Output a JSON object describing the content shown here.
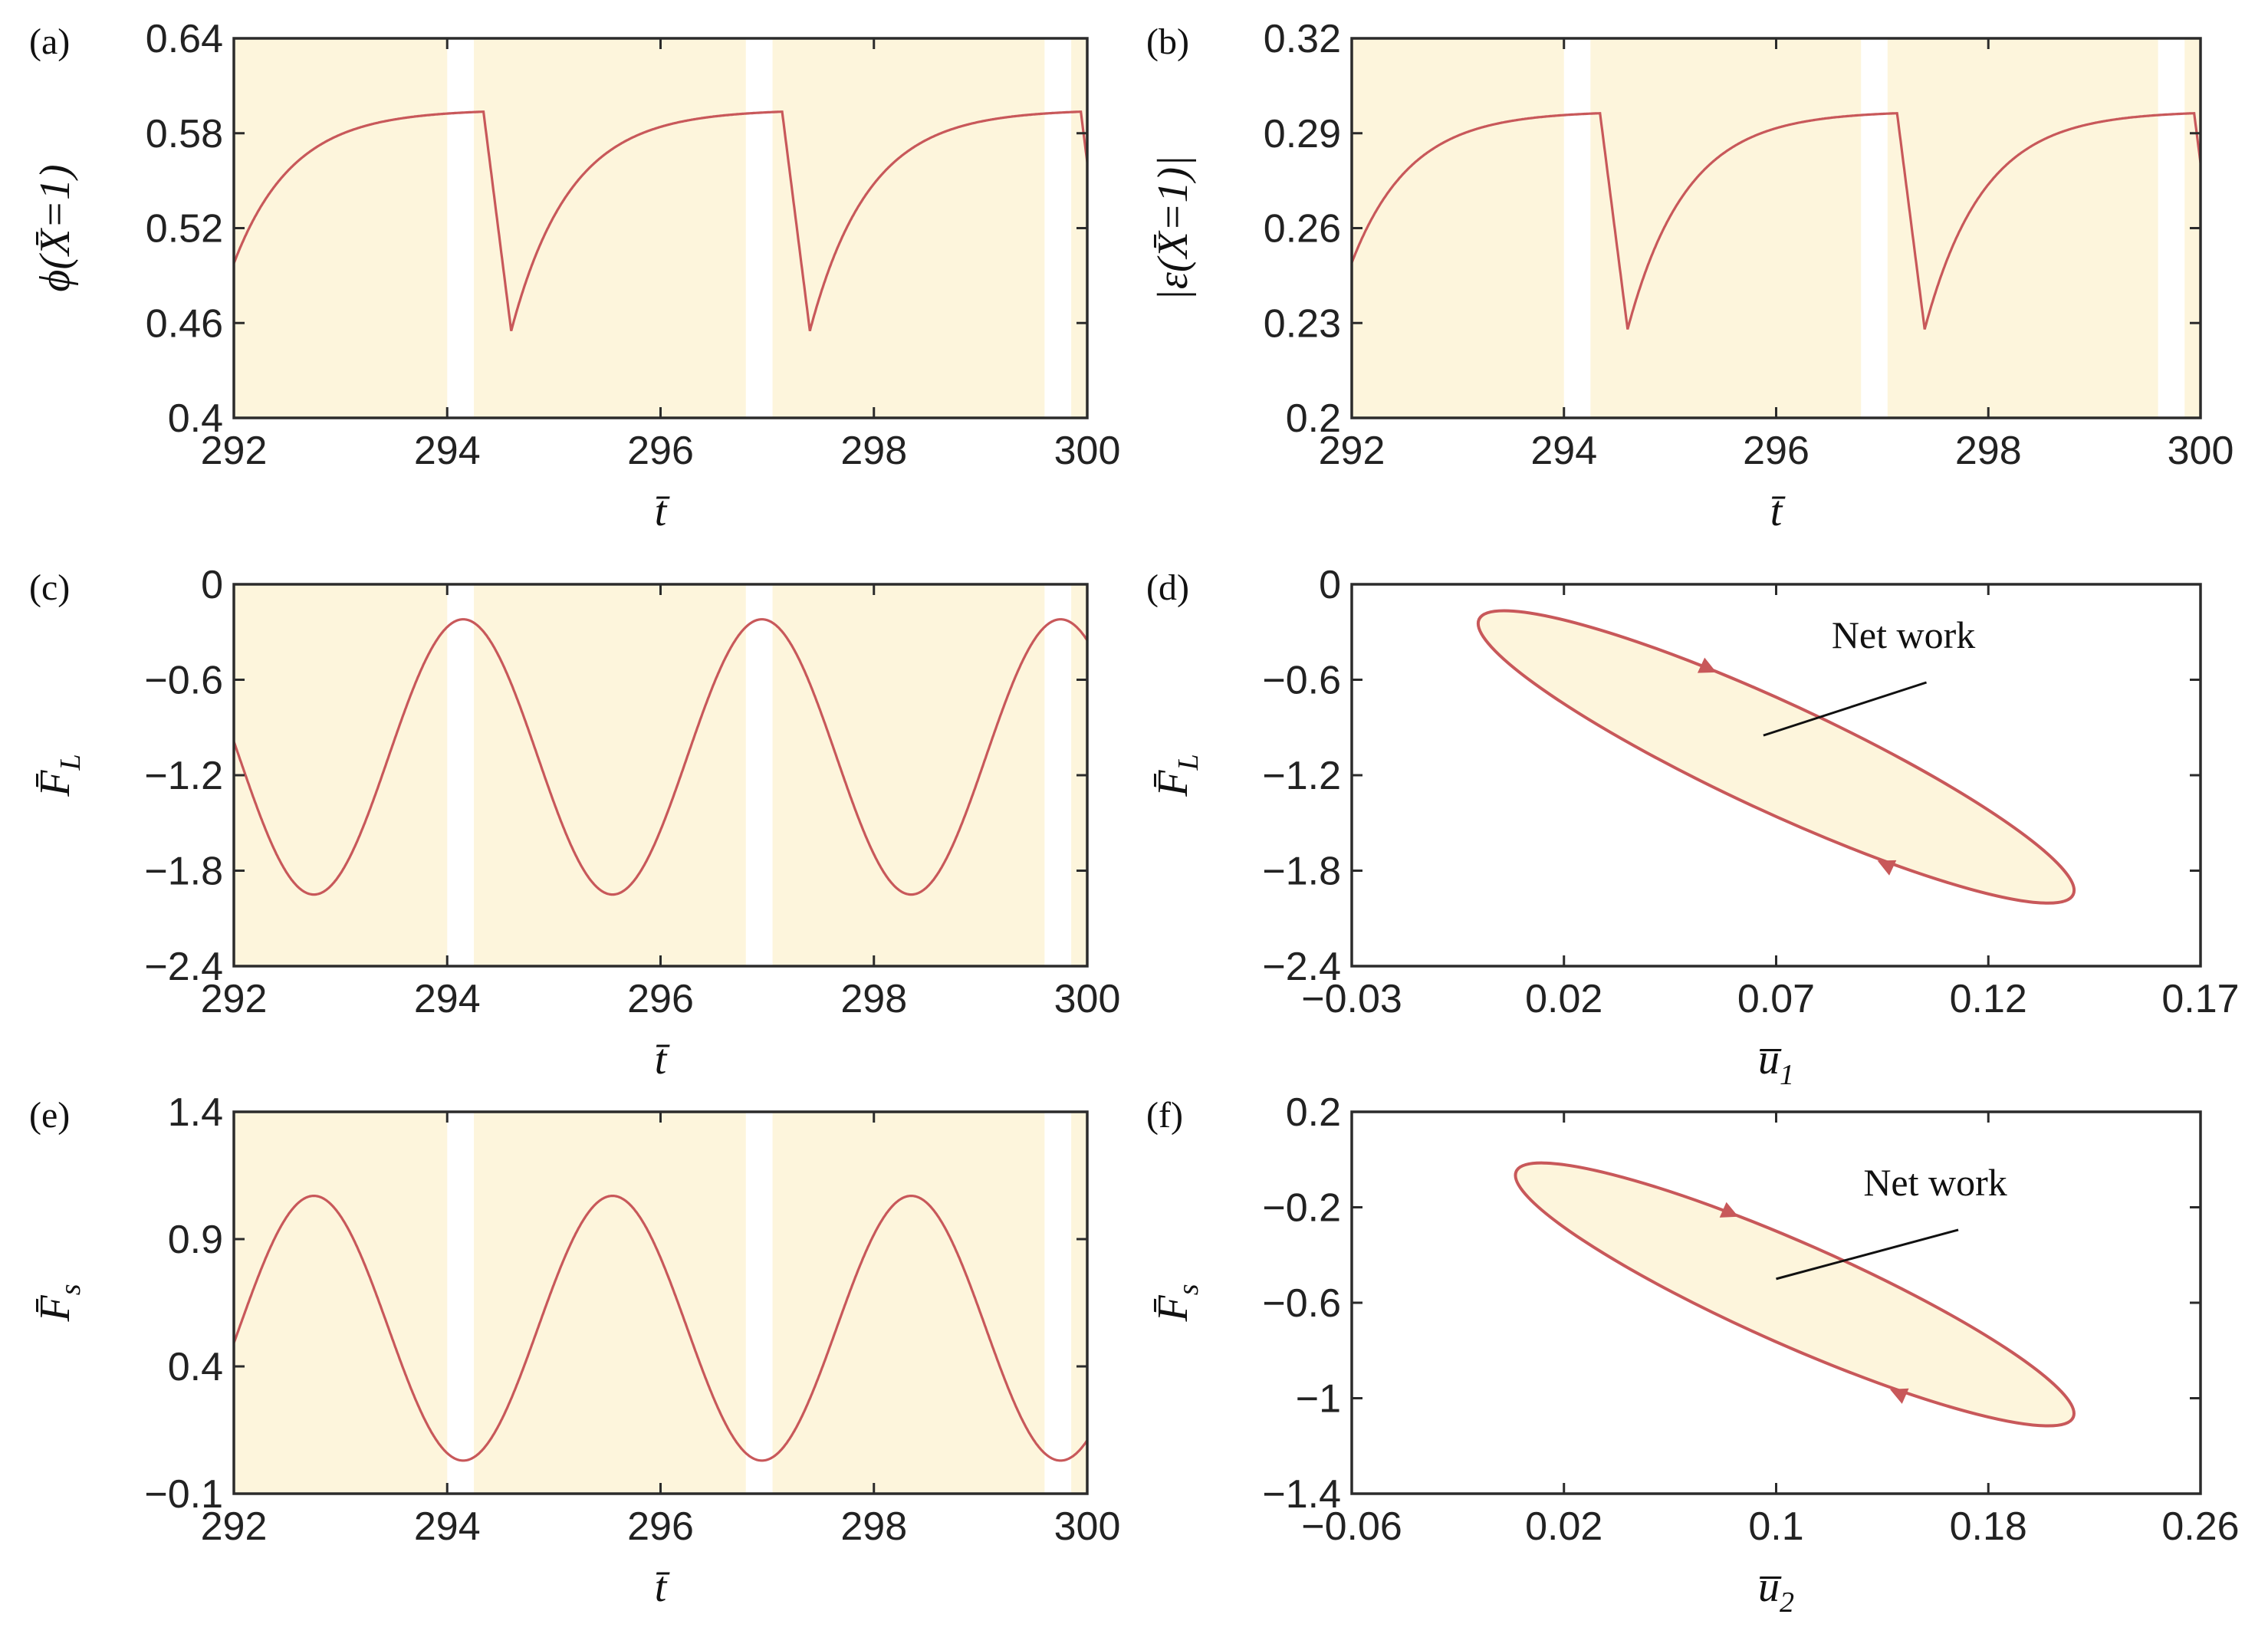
{
  "figure": {
    "colors": {
      "shade": "#fdf5dc",
      "curve": "#c8585a",
      "axis": "#2b2b2b",
      "text": "#222222"
    }
  },
  "chart_data": [
    {
      "id": "a",
      "panel_label": "(a)",
      "type": "line",
      "ylabel": {
        "main": "ϕ(X̄=1)"
      },
      "xlabel": {
        "main": "t̄"
      },
      "xlim": [
        292,
        300
      ],
      "ylim": [
        0.4,
        0.64
      ],
      "xticks": [
        "292",
        "294",
        "296",
        "298",
        "300"
      ],
      "yticks": [
        "0.4",
        "0.46",
        "0.52",
        "0.58",
        "0.64"
      ],
      "shaded_intervals": [
        [
          292,
          294.0
        ],
        [
          294.25,
          296.8
        ],
        [
          297.05,
          299.6
        ],
        [
          299.85,
          300
        ]
      ],
      "series": [
        {
          "name": "phi",
          "kind": "relax",
          "x0": 291.8,
          "period": 2.8,
          "t_drop": 0.26,
          "min": 0.455,
          "max": 0.595,
          "tau": 0.55
        }
      ]
    },
    {
      "id": "b",
      "panel_label": "(b)",
      "type": "line",
      "ylabel": {
        "main": "|ε(X̄=1)|"
      },
      "xlabel": {
        "main": "t̄"
      },
      "xlim": [
        292,
        300
      ],
      "ylim": [
        0.2,
        0.32
      ],
      "xticks": [
        "292",
        "294",
        "296",
        "298",
        "300"
      ],
      "yticks": [
        "0.2",
        "0.23",
        "0.26",
        "0.29",
        "0.32"
      ],
      "shaded_intervals": [
        [
          292,
          294.0
        ],
        [
          294.25,
          296.8
        ],
        [
          297.05,
          299.6
        ],
        [
          299.85,
          300
        ]
      ],
      "series": [
        {
          "name": "strain",
          "kind": "relax",
          "x0": 291.8,
          "period": 2.8,
          "t_drop": 0.26,
          "min": 0.228,
          "max": 0.297,
          "tau": 0.55
        }
      ]
    },
    {
      "id": "c",
      "panel_label": "(c)",
      "type": "line",
      "ylabel": {
        "main": "F̄",
        "sub": "L"
      },
      "xlabel": {
        "main": "t̄"
      },
      "xlim": [
        292,
        300
      ],
      "ylim": [
        -2.4,
        0
      ],
      "xticks": [
        "292",
        "294",
        "296",
        "298",
        "300"
      ],
      "yticks": [
        "-2.4",
        "-1.8",
        "-1.2",
        "-0.6",
        "0"
      ],
      "shaded_intervals": [
        [
          292,
          294.0
        ],
        [
          294.25,
          296.8
        ],
        [
          297.05,
          299.6
        ],
        [
          299.85,
          300
        ]
      ],
      "series": [
        {
          "name": "F_L",
          "kind": "sine",
          "mean": -1.085,
          "amp": 0.865,
          "period": 2.8,
          "peak_at": 294.15
        }
      ]
    },
    {
      "id": "d",
      "panel_label": "(d)",
      "type": "loop",
      "ylabel": {
        "main": "F̄",
        "sub": "L"
      },
      "xlabel": {
        "main": "u̅",
        "sub": "1"
      },
      "xlim": [
        -0.03,
        0.17
      ],
      "ylim": [
        -2.4,
        0
      ],
      "xticks": [
        "−0.03",
        "0.02",
        "0.07",
        "0.12",
        "0.17"
      ],
      "yticks": [
        "-2.4",
        "-1.8",
        "-1.2",
        "-0.6",
        "0"
      ],
      "annotation": {
        "text": "Net work",
        "tx": 0.1,
        "ty": -0.4,
        "ax": 0.067,
        "ay": -0.95
      },
      "series": [
        {
          "name": "loop",
          "p1": [
            0.0,
            -0.22
          ],
          "p2": [
            0.14,
            -1.95
          ],
          "half_width": 0.004,
          "arrow_s": [
            0.35,
            0.72
          ]
        }
      ]
    },
    {
      "id": "e",
      "panel_label": "(e)",
      "type": "line",
      "ylabel": {
        "main": "F̄",
        "sub": "s"
      },
      "xlabel": {
        "main": "t̄"
      },
      "xlim": [
        292,
        300
      ],
      "ylim": [
        -0.1,
        1.4
      ],
      "xticks": [
        "292",
        "294",
        "296",
        "298",
        "300"
      ],
      "yticks": [
        "-0.1",
        "0.4",
        "0.9",
        "1.4"
      ],
      "shaded_intervals": [
        [
          292,
          294.0
        ],
        [
          294.25,
          296.8
        ],
        [
          297.05,
          299.6
        ],
        [
          299.85,
          300
        ]
      ],
      "series": [
        {
          "name": "F_s",
          "kind": "sine",
          "mean": 0.55,
          "amp": 0.52,
          "period": 2.8,
          "peak_at": 292.75
        }
      ]
    },
    {
      "id": "f",
      "panel_label": "(f)",
      "type": "loop",
      "ylabel": {
        "main": "F̄",
        "sub": "s"
      },
      "xlabel": {
        "main": "u̅",
        "sub": "2"
      },
      "xlim": [
        -0.06,
        0.26
      ],
      "ylim": [
        -1.4,
        0.2
      ],
      "xticks": [
        "−0.06",
        "0.02",
        "0.1",
        "0.18",
        "0.26"
      ],
      "yticks": [
        "-1.4",
        "-1",
        "-0.6",
        "-0.2",
        "0.2"
      ],
      "annotation": {
        "text": "Net work",
        "tx": 0.16,
        "ty": -0.15,
        "ax": 0.1,
        "ay": -0.5
      },
      "series": [
        {
          "name": "loop",
          "p1": [
            0.002,
            -0.05
          ],
          "p2": [
            0.212,
            -1.08
          ],
          "half_width": 0.006,
          "arrow_s": [
            0.35,
            0.72
          ]
        }
      ]
    }
  ]
}
